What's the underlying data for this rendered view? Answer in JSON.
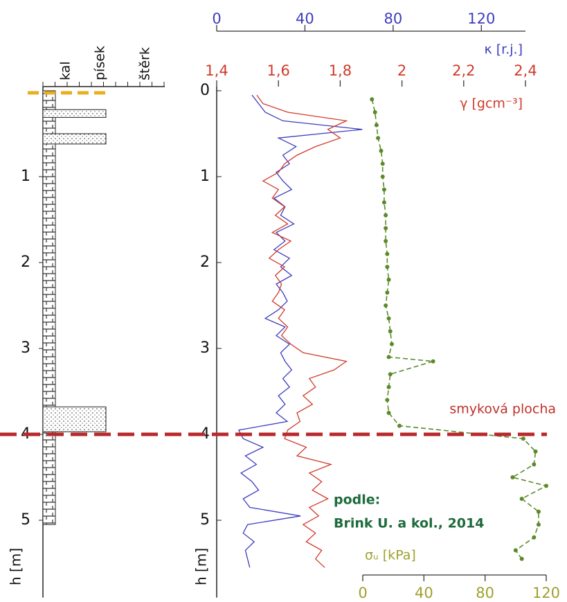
{
  "lithology": {
    "columns": [
      "kal",
      "písek",
      "štěrk"
    ],
    "ylabel": "h [m]",
    "ylim": [
      0,
      5.9
    ],
    "yticks": [
      1,
      2,
      3,
      4,
      5
    ],
    "base": 5.05,
    "surface": 0,
    "sand_layers": [
      [
        0.22,
        0.31
      ],
      [
        0.5,
        0.62
      ],
      [
        3.68,
        3.97
      ]
    ]
  },
  "chart_data": {
    "type": "line",
    "ylabel": "h [m]",
    "ylim": [
      0,
      5.9
    ],
    "yticks": [
      0,
      1,
      2,
      3,
      4,
      5
    ],
    "shear_plane": {
      "label": "smyková plocha",
      "depth": 4
    },
    "source": [
      "podle:",
      "Brink U. a kol., 2014"
    ],
    "series": [
      {
        "name": "κ [r.j.]",
        "color": "#3d3dc0",
        "xlim": [
          0,
          140
        ],
        "xticks": [
          0,
          40,
          80,
          120
        ],
        "y": [
          0.05,
          0.15,
          0.25,
          0.35,
          0.45,
          0.55,
          0.65,
          0.75,
          0.85,
          0.95,
          1.05,
          1.15,
          1.25,
          1.35,
          1.45,
          1.55,
          1.65,
          1.75,
          1.85,
          1.95,
          2.05,
          2.15,
          2.25,
          2.35,
          2.45,
          2.55,
          2.65,
          2.75,
          2.85,
          2.95,
          3.05,
          3.15,
          3.25,
          3.35,
          3.45,
          3.55,
          3.65,
          3.75,
          3.85,
          3.95,
          4.05,
          4.15,
          4.25,
          4.35,
          4.45,
          4.55,
          4.65,
          4.75,
          4.85,
          4.95,
          5.05,
          5.15,
          5.25,
          5.35,
          5.45,
          5.55
        ],
        "values": [
          16,
          19,
          22,
          30,
          66,
          28,
          36,
          30,
          33,
          27,
          30,
          34,
          26,
          31,
          29,
          35,
          27,
          31,
          26,
          33,
          29,
          34,
          27,
          30,
          32,
          28,
          22,
          31,
          27,
          33,
          29,
          31,
          34,
          30,
          33,
          28,
          31,
          27,
          32,
          10,
          12,
          21,
          13,
          18,
          11,
          16,
          19,
          12,
          15,
          38,
          14,
          12,
          17,
          13,
          14,
          15
        ]
      },
      {
        "name": "γ [gcm⁻³]",
        "color": "#d03a2a",
        "xlim": [
          1.4,
          2.4
        ],
        "xticks": [
          {
            "value": 1.4,
            "label": "1,4"
          },
          {
            "value": 1.6,
            "label": "1,6"
          },
          {
            "value": 1.8,
            "label": "1,8"
          },
          2,
          {
            "value": 2.2,
            "label": "2,2"
          },
          {
            "value": 2.4,
            "label": "2,4"
          }
        ],
        "y": [
          0.05,
          0.15,
          0.25,
          0.35,
          0.45,
          0.55,
          0.65,
          0.75,
          0.85,
          0.95,
          1.05,
          1.15,
          1.25,
          1.35,
          1.45,
          1.55,
          1.65,
          1.75,
          1.85,
          1.95,
          2.05,
          2.15,
          2.25,
          2.35,
          2.45,
          2.55,
          2.65,
          2.75,
          2.85,
          2.95,
          3.05,
          3.15,
          3.25,
          3.35,
          3.45,
          3.55,
          3.65,
          3.75,
          3.85,
          3.95,
          4.05,
          4.15,
          4.25,
          4.35,
          4.45,
          4.55,
          4.65,
          4.75,
          4.85,
          4.95,
          5.05,
          5.15,
          5.25,
          5.35,
          5.45,
          5.55
        ],
        "values": [
          1.53,
          1.55,
          1.63,
          1.82,
          1.76,
          1.8,
          1.72,
          1.66,
          1.62,
          1.6,
          1.55,
          1.6,
          1.58,
          1.62,
          1.59,
          1.63,
          1.58,
          1.64,
          1.6,
          1.57,
          1.62,
          1.59,
          1.61,
          1.6,
          1.58,
          1.62,
          1.6,
          1.63,
          1.61,
          1.64,
          1.68,
          1.82,
          1.78,
          1.7,
          1.72,
          1.68,
          1.71,
          1.66,
          1.67,
          1.63,
          1.62,
          1.69,
          1.66,
          1.77,
          1.7,
          1.74,
          1.71,
          1.76,
          1.7,
          1.73,
          1.68,
          1.72,
          1.69,
          1.74,
          1.72,
          1.75
        ]
      },
      {
        "name": "σᵤ [kPa]",
        "color": "#5b8a2a",
        "axis_color": "#a0a030",
        "xlim": [
          0,
          120
        ],
        "xticks": [
          0,
          40,
          80,
          120
        ],
        "y": [
          0.1,
          0.25,
          0.4,
          0.55,
          0.7,
          0.85,
          1.0,
          1.15,
          1.3,
          1.45,
          1.6,
          1.75,
          1.9,
          2.05,
          2.2,
          2.35,
          2.5,
          2.65,
          2.8,
          2.95,
          3.1,
          3.15,
          3.3,
          3.45,
          3.6,
          3.75,
          3.9,
          4.05,
          4.2,
          4.35,
          4.5,
          4.6,
          4.75,
          4.9,
          5.05,
          5.2,
          5.35,
          5.45
        ],
        "values": [
          6,
          8,
          9,
          10,
          12,
          13,
          13,
          14,
          14,
          15,
          15,
          15,
          16,
          16,
          17,
          16,
          15,
          17,
          18,
          19,
          17,
          46,
          18,
          17,
          16,
          17,
          24,
          105,
          113,
          112,
          98,
          120,
          104,
          115,
          115,
          112,
          100,
          104
        ]
      }
    ]
  }
}
